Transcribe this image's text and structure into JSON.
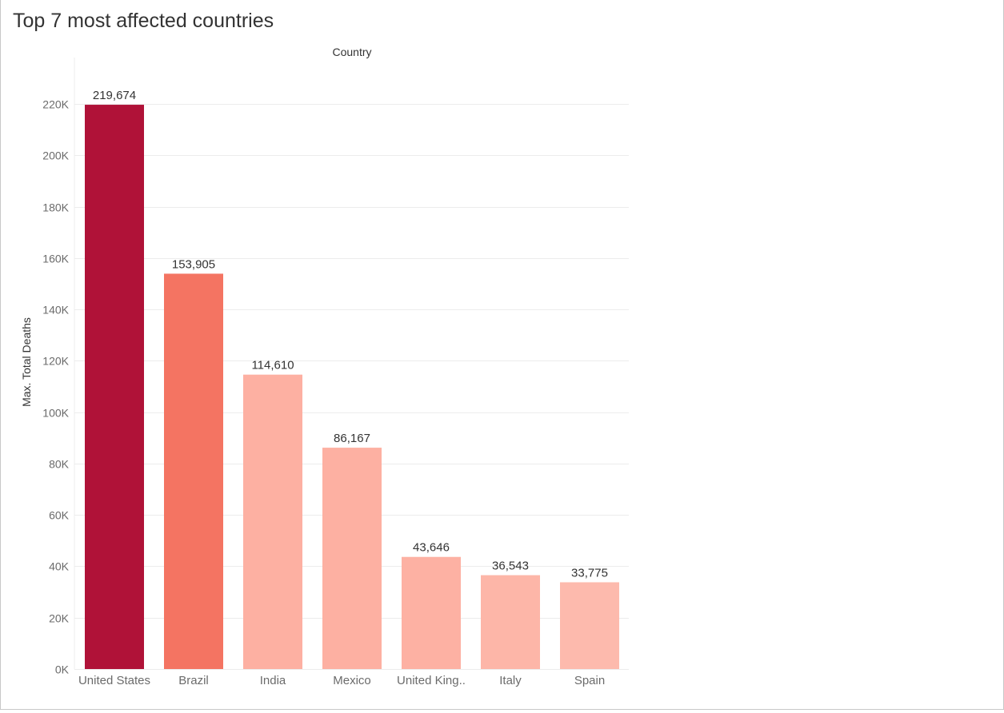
{
  "title": "Top 7 most affected countries",
  "chart_data": {
    "type": "bar",
    "title": "Top 7 most affected countries",
    "xlabel": "Country",
    "ylabel": "Max. Total Deaths",
    "categories": [
      "United States",
      "Brazil",
      "India",
      "Mexico",
      "United King..",
      "Italy",
      "Spain"
    ],
    "values": [
      219674,
      153905,
      114610,
      86167,
      43646,
      36543,
      33775
    ],
    "value_labels": [
      "219,674",
      "153,905",
      "114,610",
      "86,167",
      "43,646",
      "36,543",
      "33,775"
    ],
    "ylim": [
      0,
      220000
    ],
    "yticks": [
      0,
      20000,
      40000,
      60000,
      80000,
      100000,
      120000,
      140000,
      160000,
      180000,
      200000,
      220000
    ],
    "ytick_labels": [
      "0K",
      "20K",
      "40K",
      "60K",
      "80K",
      "100K",
      "120K",
      "140K",
      "160K",
      "180K",
      "200K",
      "220K"
    ],
    "bar_colors": [
      "#b01238",
      "#f47462",
      "#fdb0a2",
      "#fdb0a2",
      "#fdb1a3",
      "#fdb6a8",
      "#fdbaad"
    ],
    "grid": true,
    "legend": "none"
  }
}
